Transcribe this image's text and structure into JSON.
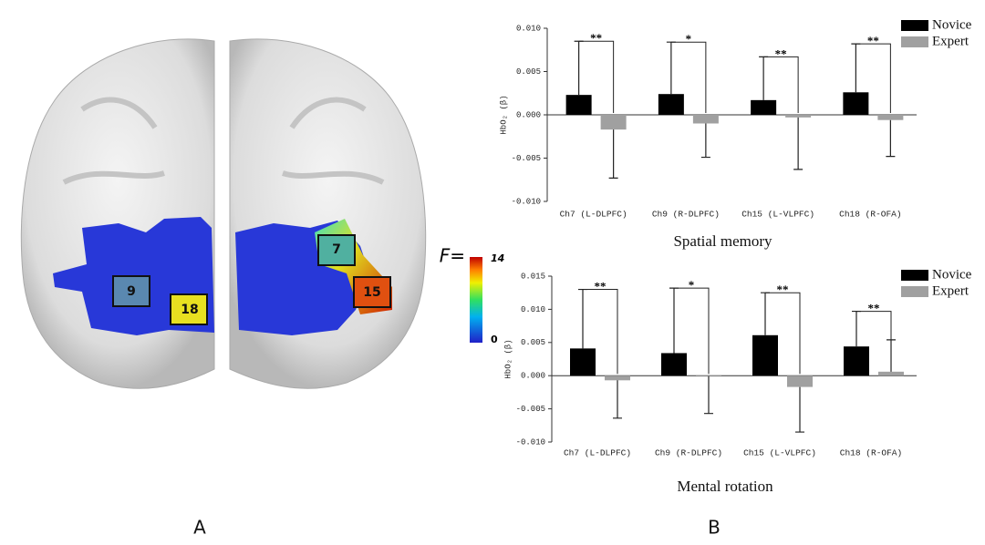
{
  "chart_data": [
    {
      "type": "bar",
      "title": "Spatial memory",
      "y_label": "HbO₂ (β)",
      "categories": [
        "Ch7 (L-DLPFC)",
        "Ch9 (R-DLPFC)",
        "Ch15 (L-VLPFC)",
        "Ch18 (R-OFA)"
      ],
      "series": [
        {
          "name": "Novice",
          "color": "#000000",
          "values": [
            0.0023,
            0.0024,
            0.0017,
            0.0026
          ],
          "errors": [
            0.0062,
            0.006,
            0.005,
            0.0056
          ]
        },
        {
          "name": "Expert",
          "color": "#a0a0a0",
          "values": [
            -0.0017,
            -0.001,
            -0.0003,
            -0.0006
          ],
          "errors": [
            0.0056,
            0.0039,
            0.006,
            0.0042
          ]
        }
      ],
      "significance": [
        "**",
        "*",
        "**",
        "**"
      ],
      "ylim": [
        -0.01,
        0.01
      ],
      "yticks": [
        {
          "value": -0.01,
          "label": "-0.010"
        },
        {
          "value": -0.005,
          "label": "-0.005"
        },
        {
          "value": 0,
          "label": "0.000"
        },
        {
          "value": 0.005,
          "label": "0.005"
        },
        {
          "value": 0.01,
          "label": "0.010"
        }
      ],
      "legend": "upper right"
    },
    {
      "type": "bar",
      "title": "Mental rotation",
      "y_label": "HbO₂ (β)",
      "categories": [
        "Ch7 (L-DLPFC)",
        "Ch9 (R-DLPFC)",
        "Ch15 (L-VLPFC)",
        "Ch18 (R-OFA)"
      ],
      "series": [
        {
          "name": "Novice",
          "color": "#000000",
          "values": [
            0.0041,
            0.0034,
            0.0061,
            0.0044
          ],
          "errors": [
            0.0089,
            0.0098,
            0.0064,
            0.0053
          ]
        },
        {
          "name": "Expert",
          "color": "#a0a0a0",
          "values": [
            -0.0007,
            -0.0001,
            -0.0017,
            0.0006
          ],
          "errors": [
            0.0057,
            0.0056,
            0.0068,
            0.0048
          ]
        }
      ],
      "significance": [
        "**",
        "*",
        "**",
        "**"
      ],
      "ylim": [
        -0.01,
        0.015
      ],
      "yticks": [
        {
          "value": -0.01,
          "label": "-0.010"
        },
        {
          "value": -0.005,
          "label": "-0.005"
        },
        {
          "value": 0,
          "label": "0.000"
        },
        {
          "value": 0.005,
          "label": "0.005"
        },
        {
          "value": 0.01,
          "label": "0.010"
        },
        {
          "value": 0.015,
          "label": "0.015"
        }
      ],
      "legend": "upper right"
    }
  ],
  "brain": {
    "channels": [
      "9",
      "18",
      "7",
      "15"
    ],
    "colorbar": {
      "label": "F=",
      "min": 0,
      "max": 14
    }
  },
  "panels": [
    "A",
    "B"
  ]
}
